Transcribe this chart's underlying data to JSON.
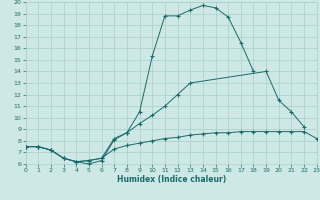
{
  "xlabel": "Humidex (Indice chaleur)",
  "bg_color": "#cde8e5",
  "grid_color": "#aacfcc",
  "line_color": "#1a6b6b",
  "xlim": [
    0,
    23
  ],
  "ylim": [
    6,
    20
  ],
  "xticks": [
    0,
    1,
    2,
    3,
    4,
    5,
    6,
    7,
    8,
    9,
    10,
    11,
    12,
    13,
    14,
    15,
    16,
    17,
    18,
    19,
    20,
    21,
    22,
    23
  ],
  "yticks": [
    6,
    7,
    8,
    9,
    10,
    11,
    12,
    13,
    14,
    15,
    16,
    17,
    18,
    19,
    20
  ],
  "curve1": [
    [
      0,
      7.5
    ],
    [
      1,
      7.5
    ],
    [
      2,
      7.2
    ],
    [
      3,
      6.5
    ],
    [
      4,
      6.2
    ],
    [
      5,
      6.0
    ],
    [
      6,
      6.3
    ],
    [
      7,
      8.1
    ],
    [
      8,
      8.7
    ],
    [
      9,
      10.5
    ],
    [
      10,
      15.3
    ],
    [
      11,
      18.8
    ],
    [
      12,
      18.8
    ],
    [
      13,
      19.3
    ],
    [
      14,
      19.7
    ],
    [
      15,
      19.5
    ],
    [
      16,
      18.7
    ],
    [
      17,
      16.5
    ],
    [
      18,
      14.0
    ]
  ],
  "curve2": [
    [
      0,
      7.5
    ],
    [
      1,
      7.5
    ],
    [
      2,
      7.2
    ],
    [
      3,
      6.5
    ],
    [
      4,
      6.2
    ],
    [
      5,
      6.3
    ],
    [
      6,
      6.5
    ],
    [
      7,
      8.2
    ],
    [
      8,
      8.7
    ],
    [
      9,
      9.5
    ],
    [
      10,
      10.2
    ],
    [
      11,
      11.0
    ],
    [
      12,
      12.0
    ],
    [
      13,
      13.0
    ],
    [
      19,
      14.0
    ],
    [
      20,
      11.5
    ],
    [
      21,
      10.5
    ],
    [
      22,
      9.2
    ]
  ],
  "curve3": [
    [
      0,
      7.5
    ],
    [
      1,
      7.5
    ],
    [
      2,
      7.2
    ],
    [
      3,
      6.5
    ],
    [
      4,
      6.2
    ],
    [
      5,
      6.3
    ],
    [
      6,
      6.5
    ],
    [
      7,
      7.3
    ],
    [
      8,
      7.6
    ],
    [
      9,
      7.8
    ],
    [
      10,
      8.0
    ],
    [
      11,
      8.2
    ],
    [
      12,
      8.3
    ],
    [
      13,
      8.5
    ],
    [
      14,
      8.6
    ],
    [
      15,
      8.7
    ],
    [
      16,
      8.7
    ],
    [
      17,
      8.8
    ],
    [
      18,
      8.8
    ],
    [
      19,
      8.8
    ],
    [
      20,
      8.8
    ],
    [
      21,
      8.8
    ],
    [
      22,
      8.8
    ],
    [
      23,
      8.2
    ]
  ]
}
